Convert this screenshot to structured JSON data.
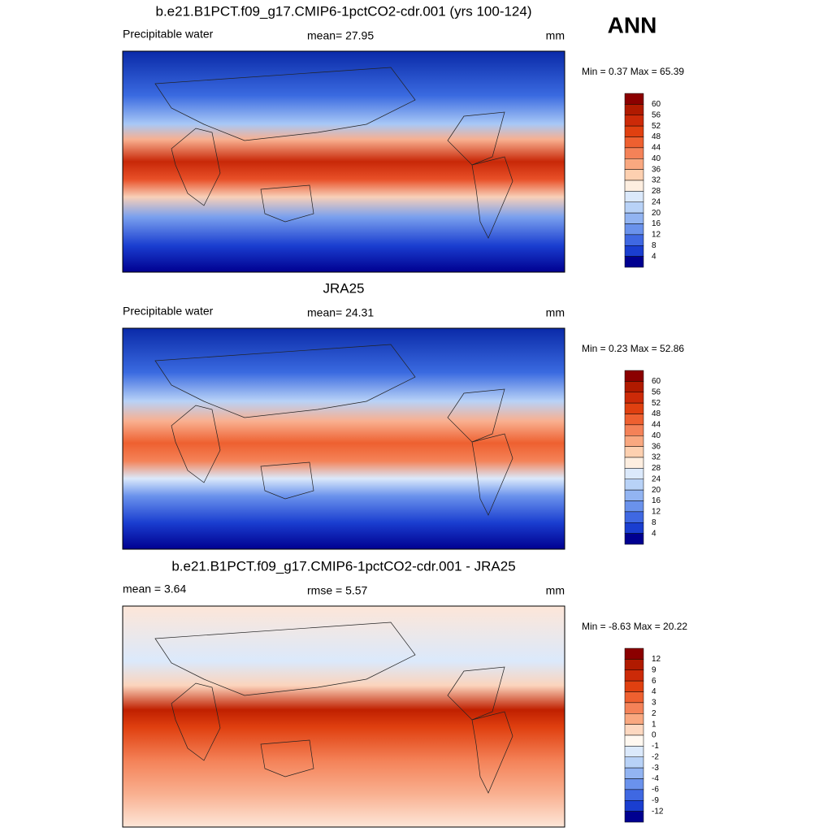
{
  "label": "ANN",
  "panels": [
    {
      "title": "b.e21.B1PCT.f09_g17.CMIP6-1pctCO2-cdr.001 (yrs 100-124)",
      "left": "Precipitable water",
      "center": "mean=  27.95",
      "right": "mm",
      "minmax": "Min =   0.37 Max =  65.39",
      "colorbar": {
        "labels": [
          60,
          56,
          52,
          48,
          44,
          40,
          36,
          32,
          28,
          24,
          20,
          16,
          12,
          8,
          4
        ],
        "colors": [
          "#8b0000",
          "#b01a00",
          "#cc2a08",
          "#e04010",
          "#ee6030",
          "#f48258",
          "#f9a880",
          "#fdd0b0",
          "#fdeee0",
          "#dbe9fb",
          "#b8d2f7",
          "#92b4f2",
          "#6a92ec",
          "#3f68e2",
          "#1a3ed0",
          "#000090"
        ]
      }
    },
    {
      "title": "JRA25",
      "left": "Precipitable water",
      "center": "mean=  24.31",
      "right": "mm",
      "minmax": "Min =   0.23 Max =  52.86",
      "colorbar": {
        "labels": [
          60,
          56,
          52,
          48,
          44,
          40,
          36,
          32,
          28,
          24,
          20,
          16,
          12,
          8,
          4
        ],
        "colors": [
          "#8b0000",
          "#b01a00",
          "#cc2a08",
          "#e04010",
          "#ee6030",
          "#f48258",
          "#f9a880",
          "#fdd0b0",
          "#fdeee0",
          "#dbe9fb",
          "#b8d2f7",
          "#92b4f2",
          "#6a92ec",
          "#3f68e2",
          "#1a3ed0",
          "#000090"
        ]
      }
    },
    {
      "title": "b.e21.B1PCT.f09_g17.CMIP6-1pctCO2-cdr.001 - JRA25",
      "left": "mean =   3.64",
      "center": "rmse =   5.57",
      "right": "mm",
      "minmax": "Min =  -8.63 Max =  20.22",
      "colorbar": {
        "labels": [
          12,
          9,
          6,
          4,
          3,
          2,
          1,
          0,
          -1,
          -2,
          -3,
          -4,
          -6,
          -9,
          -12
        ],
        "colors": [
          "#8b0000",
          "#b01a00",
          "#cc2a08",
          "#e04010",
          "#ee6030",
          "#f48258",
          "#f9a880",
          "#fdd8c0",
          "#fff8f0",
          "#dbe9fb",
          "#b8d2f7",
          "#92b4f2",
          "#6a92ec",
          "#3f68e2",
          "#1a3ed0",
          "#000090"
        ]
      }
    }
  ]
}
